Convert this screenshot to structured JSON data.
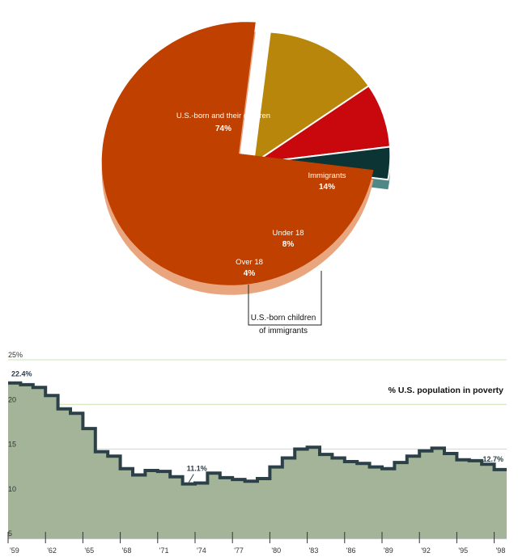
{
  "chart_data": [
    {
      "type": "pie",
      "title": "",
      "slices": [
        {
          "label": "U.S.-born and their children",
          "value": 74,
          "value_label": "74%",
          "color": "#c04000",
          "side_color": "#e9a57e"
        },
        {
          "label": "Immigrants",
          "value": 14,
          "value_label": "14%",
          "color": "#b8860b",
          "side_color": "#e8cc78"
        },
        {
          "label": "Under 18",
          "value": 8,
          "value_label": "8%",
          "color": "#c8080c",
          "side_color": "#e05040"
        },
        {
          "label": "Over 18",
          "value": 4,
          "value_label": "4%",
          "color": "#0c3434",
          "side_color": "#508888"
        }
      ],
      "group_label": [
        "U.S.-born children",
        "of immigrants"
      ],
      "exploded": [
        "Immigrants",
        "Under 18",
        "Over 18"
      ]
    },
    {
      "type": "area",
      "title": "% U.S. population in poverty",
      "x": [
        1959,
        1960,
        1961,
        1962,
        1963,
        1964,
        1965,
        1966,
        1967,
        1968,
        1969,
        1970,
        1971,
        1972,
        1973,
        1974,
        1975,
        1976,
        1977,
        1978,
        1979,
        1980,
        1981,
        1982,
        1983,
        1984,
        1985,
        1986,
        1987,
        1988,
        1989,
        1990,
        1991,
        1992,
        1993,
        1994,
        1995,
        1996,
        1997,
        1998
      ],
      "values": [
        22.4,
        22.2,
        21.9,
        21.0,
        19.5,
        19.0,
        17.3,
        14.7,
        14.2,
        12.8,
        12.1,
        12.6,
        12.5,
        11.9,
        11.1,
        11.2,
        12.3,
        11.8,
        11.6,
        11.4,
        11.7,
        13.0,
        14.0,
        15.0,
        15.2,
        14.4,
        14.0,
        13.6,
        13.4,
        13.0,
        12.8,
        13.5,
        14.2,
        14.8,
        15.1,
        14.5,
        13.8,
        13.7,
        13.3,
        12.7
      ],
      "x_tick_labels": [
        "'59",
        "'62",
        "'65",
        "'68",
        "'71",
        "'74",
        "'77",
        "'80",
        "'83",
        "'86",
        "'89",
        "'92",
        "'95",
        "'98"
      ],
      "x_tick_years": [
        1959,
        1962,
        1965,
        1968,
        1971,
        1974,
        1977,
        1980,
        1983,
        1986,
        1989,
        1992,
        1995,
        1998
      ],
      "y_tick_labels": [
        "5",
        "10",
        "15",
        "20",
        "25%"
      ],
      "y_tick_values": [
        5,
        10,
        15,
        20,
        25
      ],
      "ylim": [
        5,
        25
      ],
      "grid": true,
      "annotations": [
        {
          "x": 1959,
          "y": 22.4,
          "text": "22.4%"
        },
        {
          "x": 1973,
          "y": 11.1,
          "text": "11.1%"
        },
        {
          "x": 1998,
          "y": 12.7,
          "text": "12.7%"
        }
      ],
      "fill_color": "#a4b498",
      "line_color": "#2c4048",
      "grid_color": "#cfe0b0"
    }
  ]
}
